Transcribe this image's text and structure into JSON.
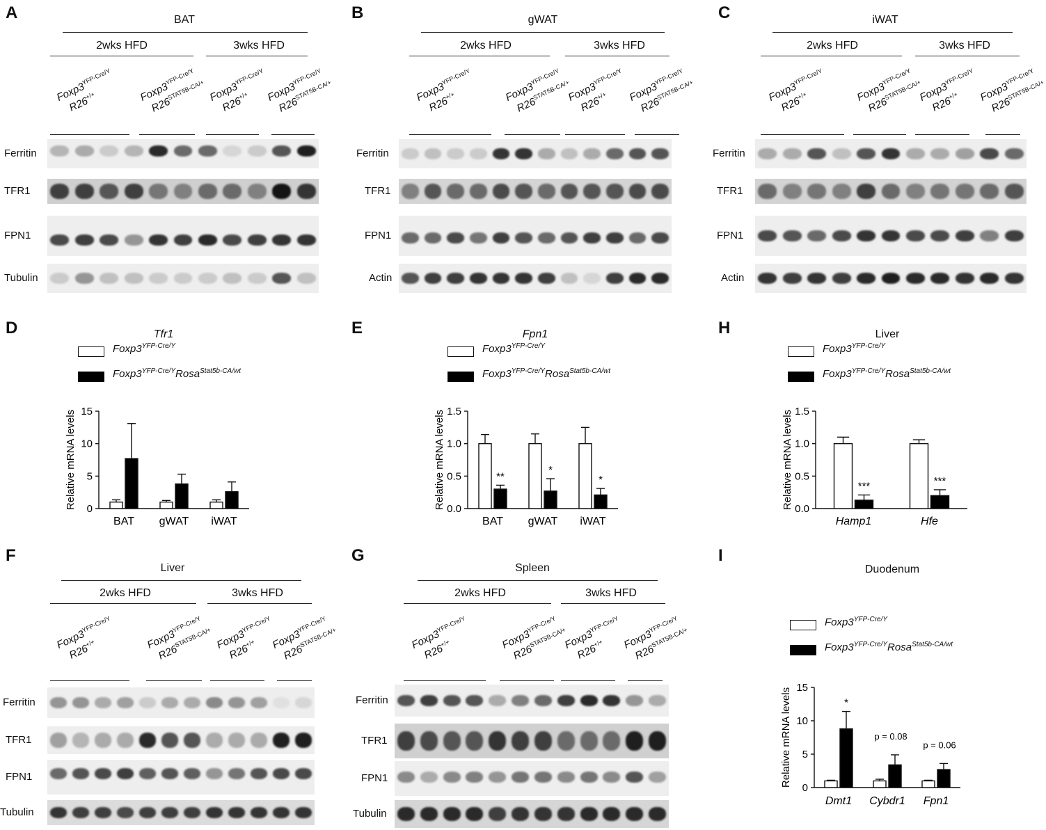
{
  "panel_letters": {
    "A": "A",
    "B": "B",
    "C": "C",
    "D": "D",
    "E": "E",
    "H": "H",
    "F": "F",
    "G": "G",
    "I": "I"
  },
  "tissues": {
    "bat": "BAT",
    "gwat": "gWAT",
    "iwat": "iWAT",
    "liver": "Liver",
    "spleen": "Spleen",
    "duodenum": "Duodenum"
  },
  "timepoints": {
    "w2": "2wks HFD",
    "w3": "3wks HFD"
  },
  "genotypes": {
    "ctrl_l1": "Foxp3",
    "ctrl_s1": "YFP-Cre/Y",
    "ctrl_l2": "R26",
    "ctrl_s2": "+/+",
    "mut_l1": "Foxp3",
    "mut_s1": "YFP-Cre/Y",
    "mut_l2": "R26",
    "mut_s2": "STAT5B-CA/+"
  },
  "proteins": {
    "ferritin": "Ferritin",
    "tfr1": "TFR1",
    "fpn1": "FPN1",
    "tubulin": "Tubulin",
    "actin": "Actin"
  },
  "legend": {
    "ctrl_base": "Foxp3",
    "ctrl_sup": "YFP-Cre/Y",
    "mut_base": "Foxp3",
    "mut_sup": "YFP-Cre/Y",
    "mut_base2": "Rosa",
    "mut_sup2": "Stat5b-CA/wt"
  },
  "ylabel": "Relative mRNA levels",
  "chart_data": [
    {
      "panel": "D",
      "type": "bar",
      "title": "Tfr1",
      "categories": [
        "BAT",
        "gWAT",
        "iWAT"
      ],
      "ylim": [
        0,
        15
      ],
      "yticks": [
        0,
        5,
        10,
        15
      ],
      "series": [
        {
          "name": "Foxp3YFP-Cre/Y",
          "values": [
            1.0,
            1.0,
            1.0
          ],
          "err": [
            0.35,
            0.25,
            0.35
          ]
        },
        {
          "name": "Foxp3YFP-Cre/YRosaStat5b-CA/wt",
          "values": [
            7.7,
            3.8,
            2.6
          ],
          "err": [
            5.4,
            1.5,
            1.5
          ]
        }
      ],
      "annotations": [
        "",
        "",
        ""
      ]
    },
    {
      "panel": "E",
      "type": "bar",
      "title": "Fpn1",
      "categories": [
        "BAT",
        "gWAT",
        "iWAT"
      ],
      "ylim": [
        0,
        1.5
      ],
      "yticks": [
        0.0,
        0.5,
        1.0,
        1.5
      ],
      "series": [
        {
          "name": "Foxp3YFP-Cre/Y",
          "values": [
            1.0,
            1.0,
            1.0
          ],
          "err": [
            0.14,
            0.15,
            0.25
          ]
        },
        {
          "name": "Foxp3YFP-Cre/YRosaStat5b-CA/wt",
          "values": [
            0.3,
            0.27,
            0.21
          ],
          "err": [
            0.06,
            0.19,
            0.1
          ]
        }
      ],
      "annotations": [
        "**",
        "*",
        "*"
      ]
    },
    {
      "panel": "H",
      "type": "bar",
      "title": "Liver",
      "categories": [
        "Hamp1",
        "Hfe"
      ],
      "ylim": [
        0,
        1.5
      ],
      "yticks": [
        0.0,
        0.5,
        1.0,
        1.5
      ],
      "series": [
        {
          "name": "Foxp3YFP-Cre/Y",
          "values": [
            1.0,
            1.0
          ],
          "err": [
            0.1,
            0.06
          ]
        },
        {
          "name": "Foxp3YFP-Cre/YRosaStat5b-CA/wt",
          "values": [
            0.13,
            0.2
          ],
          "err": [
            0.08,
            0.09
          ]
        }
      ],
      "annotations": [
        "***",
        "***"
      ]
    },
    {
      "panel": "I",
      "type": "bar",
      "title": "Duodenum",
      "categories": [
        "Dmt1",
        "Cybdr1",
        "Fpn1"
      ],
      "ylim": [
        0,
        15
      ],
      "yticks": [
        0,
        5,
        10,
        15
      ],
      "series": [
        {
          "name": "Foxp3YFP-Cre/Y",
          "values": [
            1.0,
            1.0,
            1.0
          ],
          "err": [
            0.1,
            0.25,
            0.1
          ]
        },
        {
          "name": "Foxp3YFP-Cre/YRosaStat5b-CA/wt",
          "values": [
            8.8,
            3.4,
            2.7
          ],
          "err": [
            2.6,
            1.5,
            0.9
          ]
        }
      ],
      "annotations": [
        "*",
        "p = 0.08",
        "p = 0.06"
      ]
    }
  ]
}
